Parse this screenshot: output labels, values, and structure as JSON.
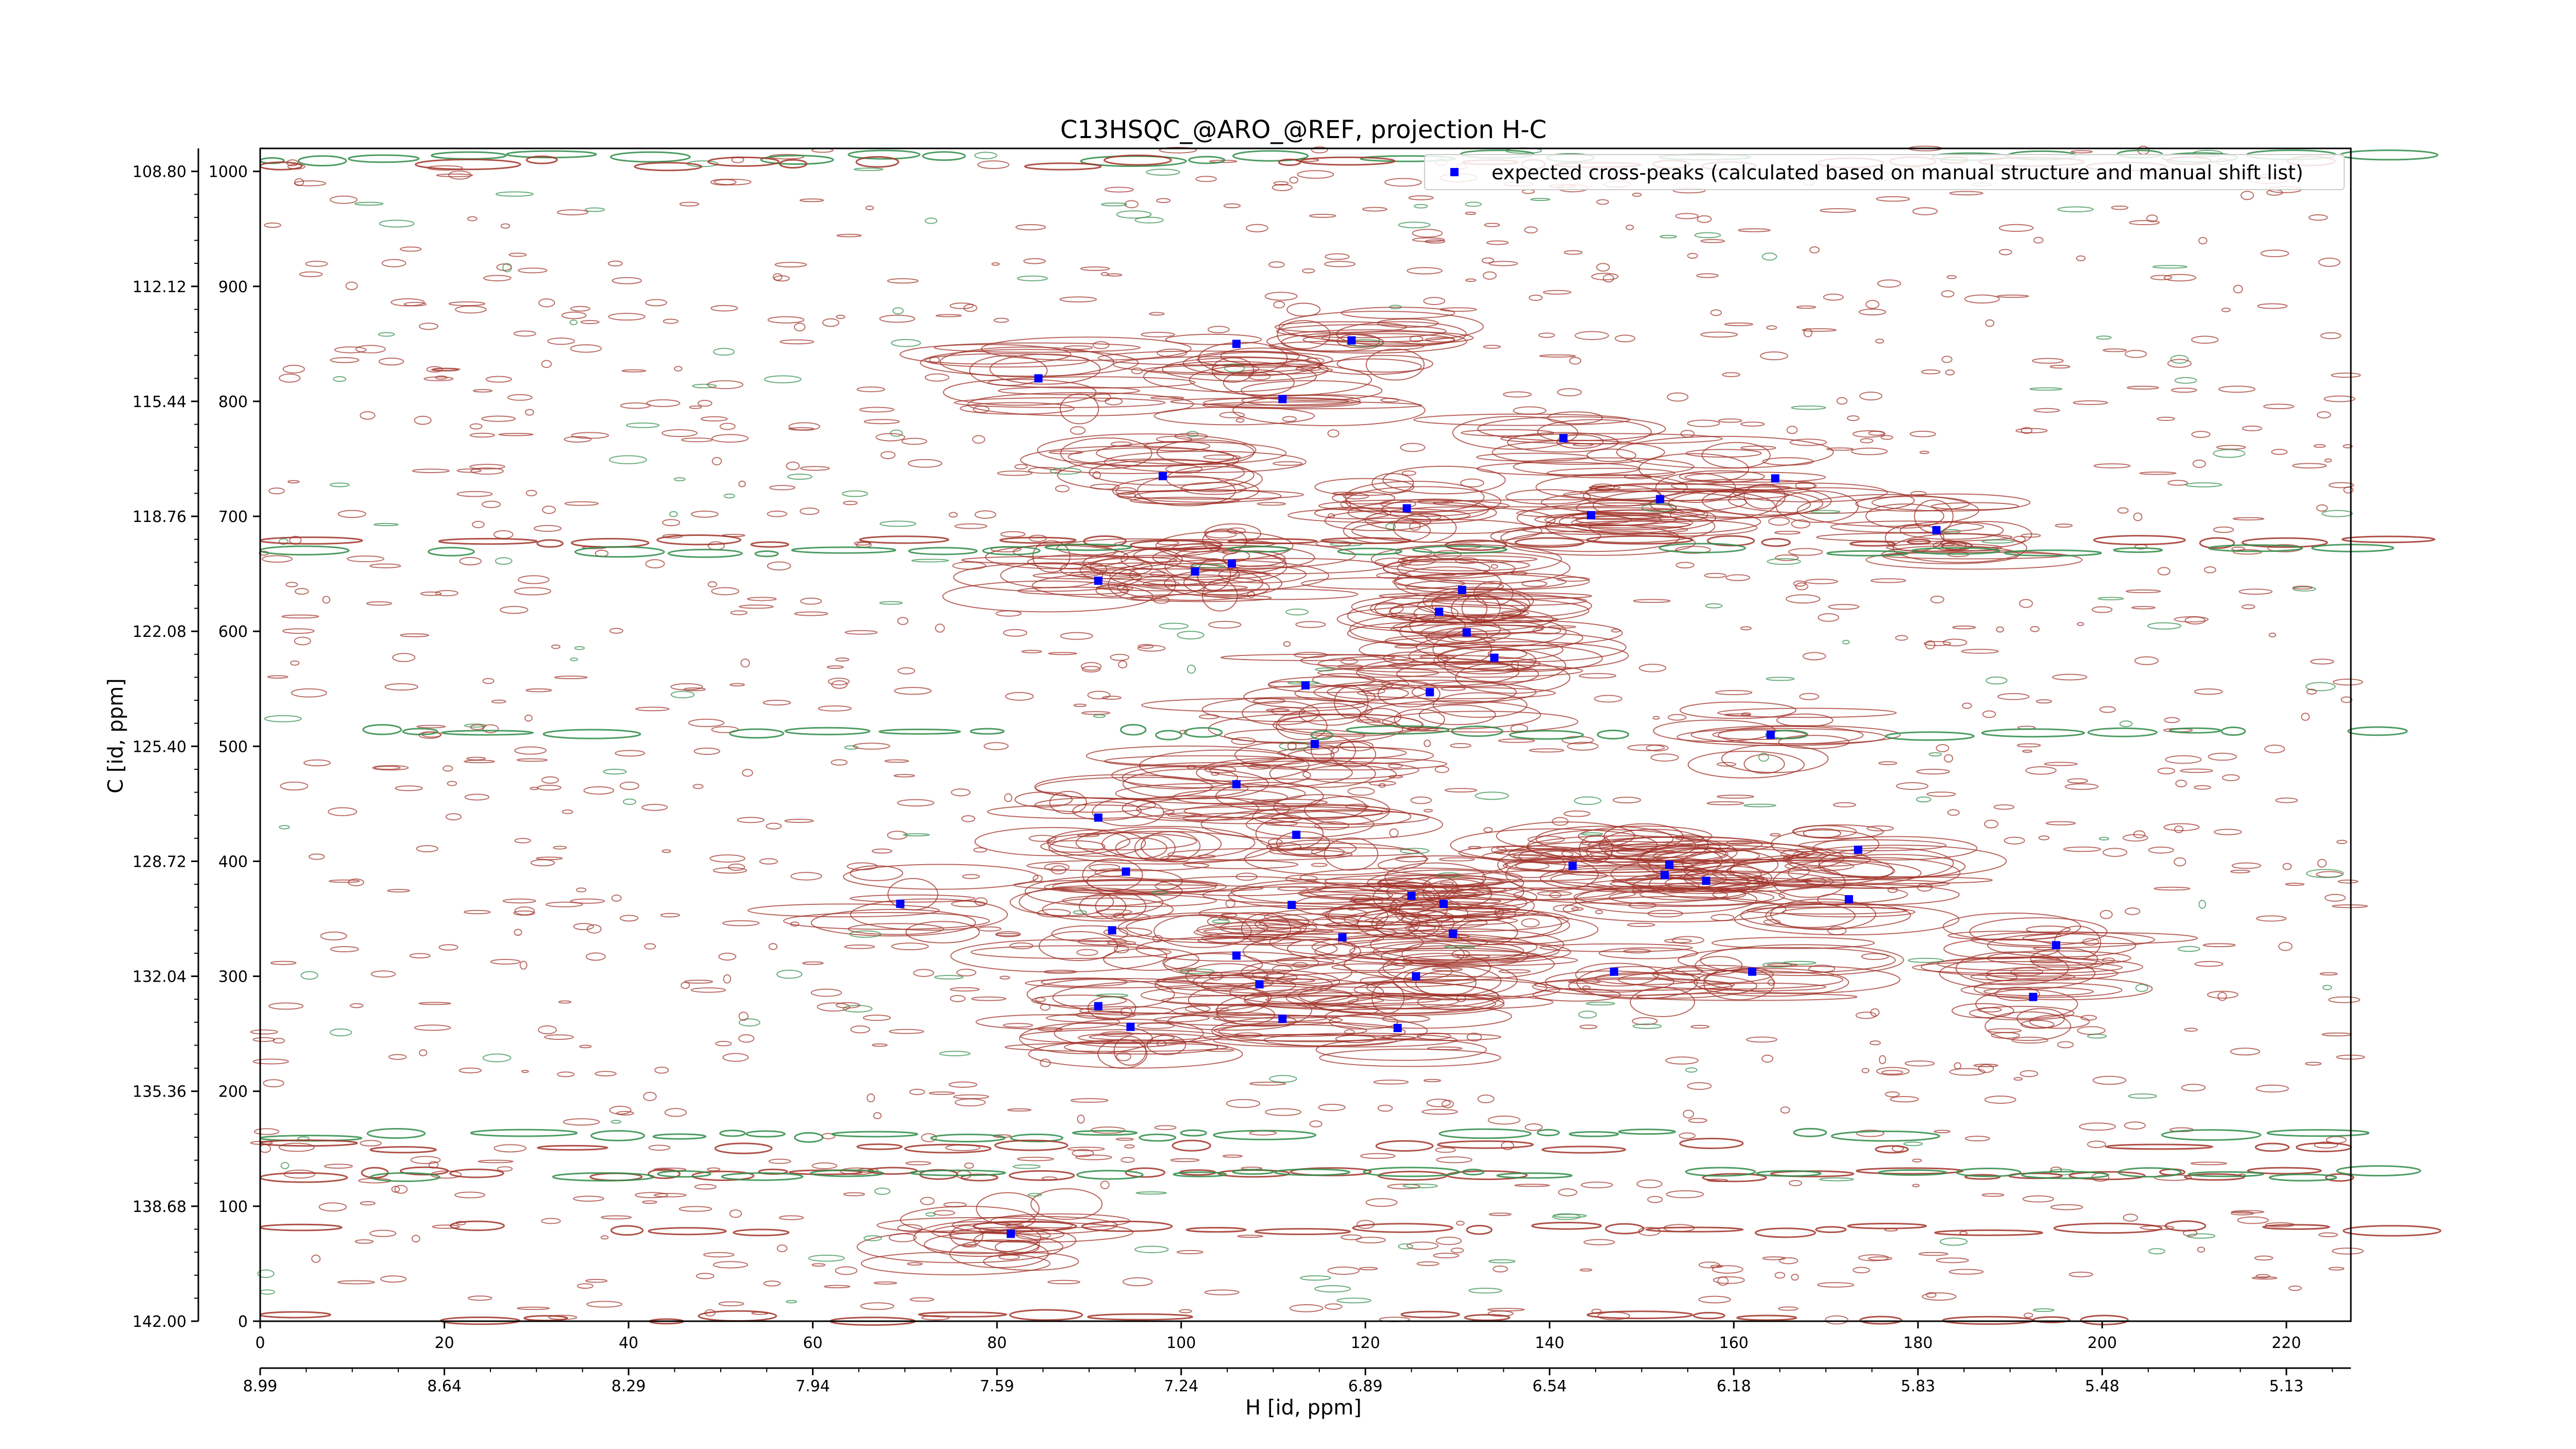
{
  "chart_data": {
    "type": "scatter",
    "title": "C13HSQC_@ARO_@REF, projection H-C",
    "xlabel": "H [id, ppm]",
    "ylabel": "C [id, ppm]",
    "x_index_range": [
      0,
      227
    ],
    "y_index_range": [
      0,
      1020
    ],
    "x_index_ticks": [
      "0",
      "20",
      "40",
      "60",
      "80",
      "100",
      "120",
      "140",
      "160",
      "180",
      "200",
      "220"
    ],
    "x_ppm_ticks": [
      "8.99",
      "8.64",
      "8.29",
      "7.94",
      "7.59",
      "7.24",
      "6.89",
      "6.54",
      "6.18",
      "5.83",
      "5.48",
      "5.13"
    ],
    "y_index_ticks": [
      "1000",
      "900",
      "800",
      "700",
      "600",
      "500",
      "400",
      "300",
      "200",
      "100",
      "0"
    ],
    "y_ppm_ticks": [
      "108.80",
      "112.12",
      "115.44",
      "118.76",
      "122.08",
      "125.40",
      "128.72",
      "132.04",
      "135.36",
      "138.68",
      "142.00"
    ],
    "legend": {
      "label": "expected cross-peaks (calculated based on manual structure and manual shift list)",
      "placement": "top-right",
      "marker_color": "#0000ff"
    },
    "colors": {
      "positive_contours": "#a03228",
      "negative_contours": "#2e8b46",
      "peak_marker": "#0000ff"
    },
    "series": [
      {
        "name": "expected cross-peaks (calculated based on manual structure and manual shift list)",
        "points": [
          [
            106,
            850
          ],
          [
            118.5,
            853
          ],
          [
            84.5,
            820
          ],
          [
            111,
            802
          ],
          [
            141.5,
            768
          ],
          [
            98,
            735
          ],
          [
            164.5,
            733
          ],
          [
            152,
            715
          ],
          [
            124.5,
            707
          ],
          [
            144.5,
            701
          ],
          [
            182,
            688
          ],
          [
            105.5,
            659
          ],
          [
            101.5,
            652
          ],
          [
            91,
            644
          ],
          [
            130.5,
            636
          ],
          [
            128,
            617
          ],
          [
            131,
            599
          ],
          [
            134,
            577
          ],
          [
            113.5,
            553
          ],
          [
            127,
            547
          ],
          [
            164,
            510
          ],
          [
            114.5,
            502
          ],
          [
            106,
            467
          ],
          [
            91,
            438
          ],
          [
            112.5,
            423
          ],
          [
            173.5,
            410
          ],
          [
            142.5,
            396
          ],
          [
            153,
            397
          ],
          [
            152.5,
            388
          ],
          [
            157,
            383
          ],
          [
            94,
            391
          ],
          [
            69.5,
            363
          ],
          [
            125,
            370
          ],
          [
            172.5,
            367
          ],
          [
            112,
            362
          ],
          [
            128.5,
            363
          ],
          [
            92.5,
            340
          ],
          [
            129.5,
            337
          ],
          [
            117.5,
            334
          ],
          [
            195,
            327
          ],
          [
            106,
            318
          ],
          [
            147,
            304
          ],
          [
            162,
            304
          ],
          [
            125.5,
            300
          ],
          [
            108.5,
            293
          ],
          [
            192.5,
            282
          ],
          [
            91,
            274
          ],
          [
            111,
            263
          ],
          [
            94.5,
            256
          ],
          [
            123.5,
            255
          ],
          [
            81.5,
            76
          ]
        ]
      }
    ]
  }
}
